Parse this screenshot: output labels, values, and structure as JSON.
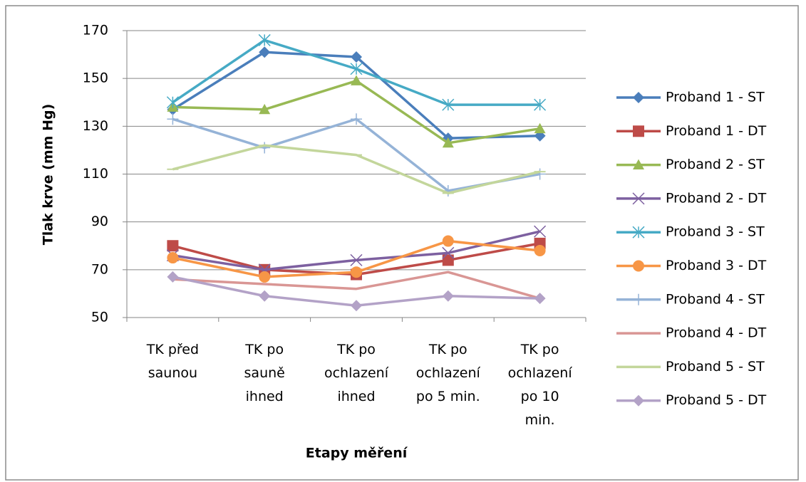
{
  "chart_data": {
    "type": "line",
    "x_label": "Etapy měření",
    "y_label": "Tlak krve (mm Hg)",
    "categories": [
      "TK před saunou",
      "TK po sauně ihned",
      "TK po ochlazení ihned",
      "TK po ochlazení po 5 min.",
      "TK po ochlazení po 10 min."
    ],
    "ylim": [
      50,
      170
    ],
    "yticks": [
      50,
      70,
      90,
      110,
      130,
      150,
      170
    ],
    "grid": true,
    "legend": "right",
    "series": [
      {
        "name": "Proband 1 - ST",
        "color": "#4a7ebb",
        "marker": "diamond",
        "values": [
          137,
          161,
          159,
          125,
          126
        ]
      },
      {
        "name": "Proband 1 - DT",
        "color": "#be4b48",
        "marker": "square",
        "values": [
          80,
          70,
          68,
          74,
          81
        ]
      },
      {
        "name": "Proband 2 - ST",
        "color": "#98b954",
        "marker": "triangle",
        "values": [
          138,
          137,
          149,
          123,
          129
        ]
      },
      {
        "name": "Proband 2 - DT",
        "color": "#7d60a0",
        "marker": "x",
        "values": [
          76,
          70,
          74,
          77,
          86
        ]
      },
      {
        "name": "Proband 3 - ST",
        "color": "#46aac5",
        "marker": "star",
        "values": [
          140,
          166,
          154,
          139,
          139
        ]
      },
      {
        "name": "Proband 3 - DT",
        "color": "#f79646",
        "marker": "circle",
        "values": [
          75,
          67,
          69,
          82,
          78
        ]
      },
      {
        "name": "Proband 4 - ST",
        "color": "#95b3d7",
        "marker": "plus",
        "values": [
          133,
          121,
          133,
          103,
          110
        ]
      },
      {
        "name": "Proband 4 - DT",
        "color": "#d99694",
        "marker": "none",
        "values": [
          66,
          64,
          62,
          69,
          58
        ]
      },
      {
        "name": "Proband 5 - ST",
        "color": "#c3d69b",
        "marker": "dash",
        "values": [
          112,
          122,
          118,
          102,
          111
        ]
      },
      {
        "name": "Proband 5 - DT",
        "color": "#b3a2c7",
        "marker": "diamond",
        "values": [
          67,
          59,
          55,
          59,
          58
        ]
      }
    ]
  }
}
